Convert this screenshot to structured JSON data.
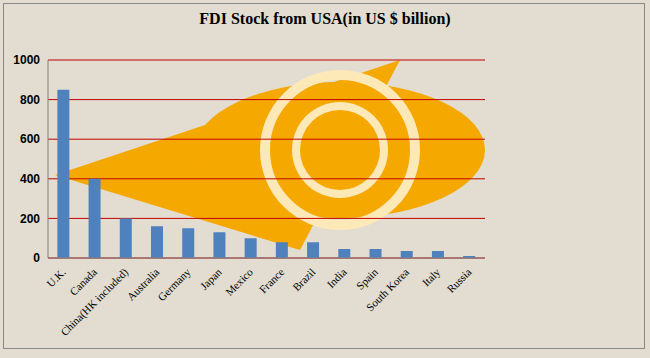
{
  "chart_data": {
    "type": "bar",
    "title": "FDI Stock from USA(in US $ billion)",
    "categories": [
      "U.K.",
      "Canada",
      "China(HK included)",
      "Australia",
      "Germany",
      "Japan",
      "Mexico",
      "France",
      "Brazil",
      "India",
      "Spain",
      "South Korea",
      "Italy",
      "Russia"
    ],
    "values": [
      850,
      400,
      200,
      160,
      150,
      130,
      100,
      80,
      80,
      45,
      45,
      35,
      35,
      10
    ],
    "color": "#4f81bd",
    "ylim": [
      0,
      1000
    ],
    "yticks": [
      0,
      200,
      400,
      600,
      800,
      1000
    ],
    "grid": true
  }
}
